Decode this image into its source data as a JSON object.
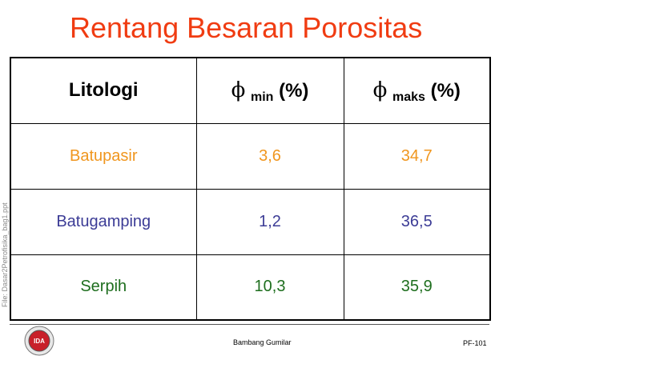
{
  "title": "Rentang Besaran Porositas",
  "side_label": "File: Dasar2Petrofisika_bag1.ppt",
  "colors": {
    "title": "#f03c12",
    "batupasir": "#f0961e",
    "batugamping": "#3c3c96",
    "serpih": "#1e6e1e"
  },
  "table": {
    "headers": {
      "col1": "Litologi",
      "col2_symbol": "ϕ",
      "col2_sub": "min",
      "col2_unit": "(%)",
      "col3_symbol": "ϕ",
      "col3_sub": "maks",
      "col3_unit": "(%)"
    },
    "rows": [
      {
        "litologi": "Batupasir",
        "min": "3,6",
        "maks": "34,7"
      },
      {
        "litologi": "Batugamping",
        "min": "1,2",
        "maks": "36,5"
      },
      {
        "litologi": "Serpih",
        "min": "10,3",
        "maks": "35,9"
      }
    ]
  },
  "footer": {
    "author": "Bambang Gumilar",
    "page_id": "PF-101",
    "logo_text": "IDA",
    "logo_icon": "organization-logo-icon"
  }
}
